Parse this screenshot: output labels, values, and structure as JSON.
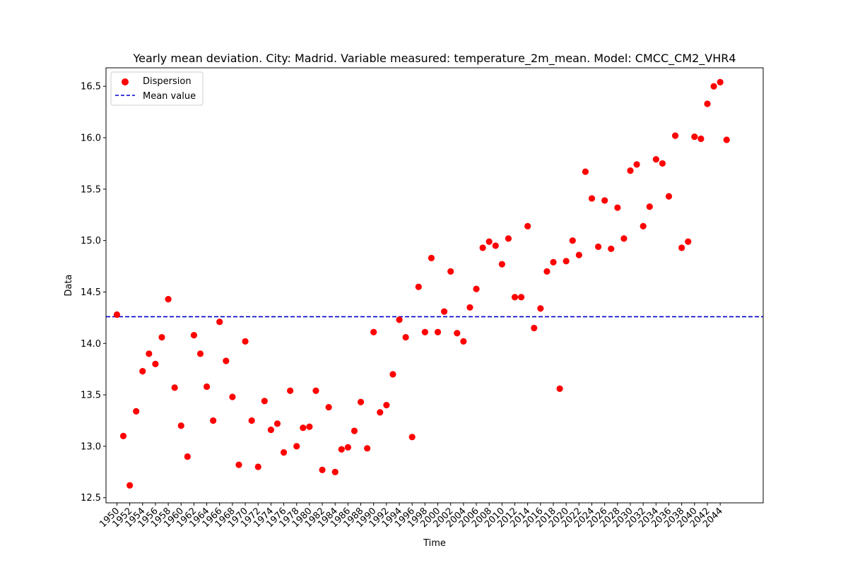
{
  "chart_data": {
    "type": "scatter",
    "title": "Yearly mean deviation. City: Madrid. Variable measured: temperature_2m_mean. Model: CMCC_CM2_VHR4",
    "xlabel": "Time",
    "ylabel": "Data",
    "ylim": [
      12.45,
      16.68
    ],
    "xlim": [
      1948.3,
      2050.7
    ],
    "yticks": [
      "12.5",
      "13.0",
      "13.5",
      "14.0",
      "14.5",
      "15.0",
      "15.5",
      "16.0",
      "16.5"
    ],
    "xticks": [
      "1950",
      "1952",
      "1954",
      "1956",
      "1958",
      "1960",
      "1962",
      "1964",
      "1966",
      "1968",
      "1970",
      "1972",
      "1974",
      "1976",
      "1978",
      "1980",
      "1982",
      "1984",
      "1986",
      "1988",
      "1990",
      "1992",
      "1994",
      "1996",
      "1998",
      "2000",
      "2002",
      "2004",
      "2006",
      "2008",
      "2010",
      "2012",
      "2014",
      "2016",
      "2018",
      "2020",
      "2022",
      "2024",
      "2026",
      "2028",
      "2030",
      "2032",
      "2034",
      "2036",
      "2038",
      "2040",
      "2042",
      "2044"
    ],
    "legend": {
      "location": "upper-left",
      "entries": [
        "Dispersion",
        "Mean value"
      ]
    },
    "grid": false,
    "colors": {
      "points": "#ff0000",
      "mean_line": "#0000cc"
    },
    "mean_value": 14.26,
    "series": [
      {
        "name": "Dispersion",
        "x": [
          1950,
          1951,
          1952,
          1953,
          1954,
          1955,
          1956,
          1957,
          1958,
          1959,
          1960,
          1961,
          1962,
          1963,
          1964,
          1965,
          1966,
          1967,
          1968,
          1969,
          1970,
          1971,
          1972,
          1973,
          1974,
          1975,
          1976,
          1977,
          1978,
          1979,
          1980,
          1981,
          1982,
          1983,
          1984,
          1985,
          1986,
          1987,
          1988,
          1989,
          1990,
          1991,
          1992,
          1993,
          1994,
          1995,
          1996,
          1997,
          1998,
          1999,
          2000,
          2001,
          2002,
          2003,
          2004,
          2005,
          2006,
          2007,
          2008,
          2009,
          2010,
          2011,
          2012,
          2013,
          2014,
          2015,
          2016,
          2017,
          2018,
          2019,
          2020,
          2021,
          2022,
          2023,
          2024,
          2025,
          2026,
          2027,
          2028,
          2029,
          2030,
          2031,
          2032,
          2033,
          2034,
          2035,
          2036,
          2037,
          2038,
          2039,
          2040,
          2041,
          2042,
          2043,
          2044,
          2045
        ],
        "y": [
          14.28,
          13.1,
          12.62,
          13.34,
          13.73,
          13.9,
          13.8,
          14.06,
          14.43,
          13.57,
          13.2,
          12.9,
          14.08,
          13.9,
          13.58,
          13.25,
          14.21,
          13.83,
          13.48,
          12.82,
          14.02,
          13.25,
          12.8,
          13.44,
          13.16,
          13.22,
          12.94,
          13.54,
          13.0,
          13.18,
          13.19,
          13.54,
          12.77,
          13.38,
          12.75,
          12.97,
          12.99,
          13.15,
          13.43,
          12.98,
          14.11,
          13.33,
          13.4,
          13.7,
          14.23,
          14.06,
          13.09,
          14.55,
          14.11,
          14.83,
          14.11,
          14.31,
          14.7,
          14.1,
          14.02,
          14.35,
          14.53,
          14.93,
          14.99,
          14.95,
          14.77,
          15.02,
          14.45,
          14.45,
          15.14,
          14.15,
          14.34,
          14.7,
          14.79,
          13.56,
          14.8,
          15.0,
          14.86,
          15.67,
          15.41,
          14.94,
          15.39,
          14.92,
          15.32,
          15.02,
          15.68,
          15.74,
          15.14,
          15.33,
          15.79,
          15.75,
          15.43,
          16.02,
          14.93,
          14.99,
          16.01,
          15.99,
          16.33,
          16.5,
          16.54,
          15.98
        ]
      }
    ]
  }
}
